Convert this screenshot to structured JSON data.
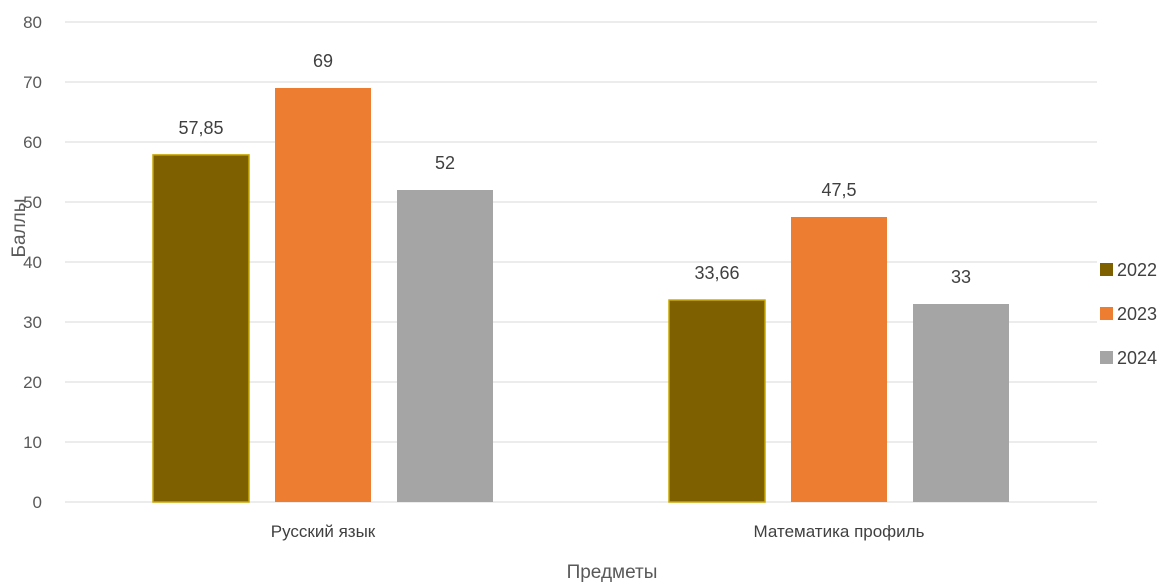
{
  "chart_data": {
    "type": "bar",
    "categories": [
      "Русский язык",
      "Математика профиль"
    ],
    "series": [
      {
        "name": "2022",
        "values": [
          57.85,
          33.66
        ],
        "labels": [
          "57,85",
          "33,66"
        ],
        "color": "#7f6000"
      },
      {
        "name": "2023",
        "values": [
          69,
          47.5
        ],
        "labels": [
          "69",
          "47,5"
        ],
        "color": "#ed7d31"
      },
      {
        "name": "2024",
        "values": [
          52,
          33
        ],
        "labels": [
          "52",
          "33"
        ],
        "color": "#a5a5a5"
      }
    ],
    "xlabel": "Предметы",
    "ylabel": "Баллы",
    "ylim": [
      0,
      80
    ],
    "yticks": [
      0,
      10,
      20,
      30,
      40,
      50,
      60,
      70,
      80
    ],
    "grid": true,
    "legend_position": "right"
  }
}
